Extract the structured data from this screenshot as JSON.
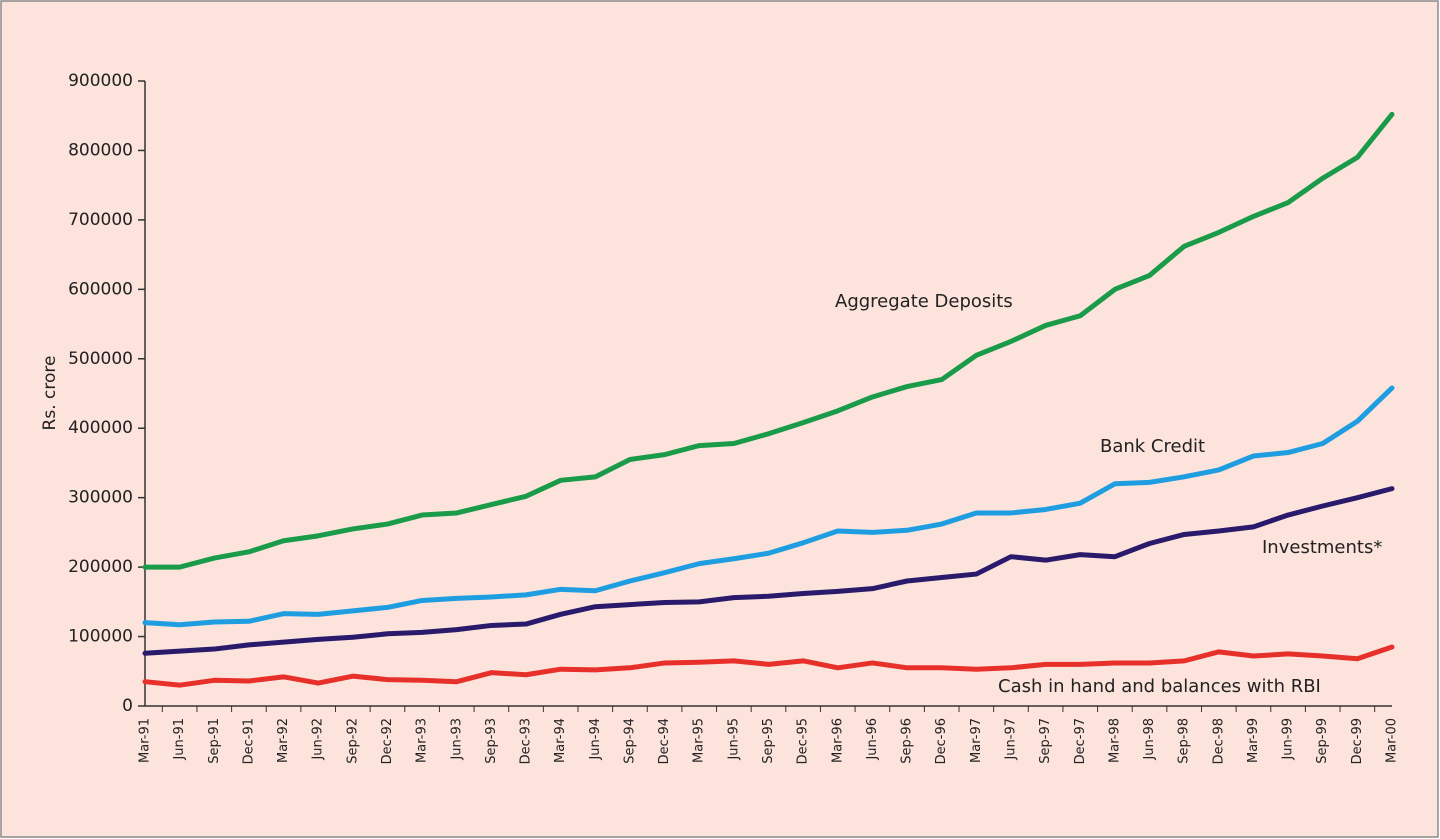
{
  "chart_data": {
    "type": "line",
    "y_label": "Rs. crore",
    "categories": [
      "Mar-91",
      "Jun-91",
      "Sep-91",
      "Dec-91",
      "Mar-92",
      "Jun-92",
      "Sep-92",
      "Dec-92",
      "Mar-93",
      "Jun-93",
      "Sep-93",
      "Dec-93",
      "Mar-94",
      "Jun-94",
      "Sep-94",
      "Dec-94",
      "Mar-95",
      "Jun-95",
      "Sep-95",
      "Dec-95",
      "Mar-96",
      "Jun-96",
      "Sep-96",
      "Dec-96",
      "Mar-97",
      "Jun-97",
      "Sep-97",
      "Dec-97",
      "Mar-98",
      "Jun-98",
      "Sep-98",
      "Dec-98",
      "Mar-99",
      "Jun-99",
      "Sep-99",
      "Dec-99",
      "Mar-00"
    ],
    "series": [
      {
        "name": "Aggregate Deposits",
        "color": "#1a9b4a",
        "values": [
          200000,
          200000,
          213000,
          222000,
          238000,
          245000,
          255000,
          262000,
          275000,
          278000,
          290000,
          302000,
          325000,
          330000,
          355000,
          362000,
          375000,
          378000,
          392000,
          408000,
          425000,
          445000,
          460000,
          470000,
          505000,
          525000,
          548000,
          562000,
          600000,
          620000,
          662000,
          682000,
          705000,
          725000,
          760000,
          790000,
          852000
        ]
      },
      {
        "name": "Bank Credit",
        "color": "#1e9ee0",
        "values": [
          120000,
          117000,
          121000,
          122000,
          133000,
          132000,
          137000,
          142000,
          152000,
          155000,
          157000,
          160000,
          168000,
          166000,
          180000,
          192000,
          205000,
          212000,
          220000,
          235000,
          252000,
          250000,
          253000,
          262000,
          278000,
          278000,
          283000,
          292000,
          320000,
          322000,
          330000,
          340000,
          360000,
          365000,
          378000,
          410000,
          458000
        ]
      },
      {
        "name": "Investments*",
        "color": "#2a1a6b",
        "values": [
          76000,
          79000,
          82000,
          88000,
          92000,
          96000,
          99000,
          104000,
          106000,
          110000,
          116000,
          118000,
          132000,
          143000,
          146000,
          149000,
          150000,
          156000,
          158000,
          162000,
          165000,
          169000,
          180000,
          185000,
          190000,
          215000,
          210000,
          218000,
          215000,
          234000,
          247000,
          252000,
          258000,
          275000,
          288000,
          300000,
          313000
        ]
      },
      {
        "name": "Cash in hand and balances with RBI",
        "color": "#e8302a",
        "values": [
          35000,
          30000,
          37000,
          36000,
          42000,
          33000,
          43000,
          38000,
          37000,
          35000,
          48000,
          45000,
          53000,
          52000,
          55000,
          62000,
          63000,
          65000,
          60000,
          65000,
          55000,
          62000,
          55000,
          55000,
          53000,
          55000,
          60000,
          60000,
          62000,
          62000,
          65000,
          78000,
          72000,
          75000,
          72000,
          68000,
          85000
        ]
      }
    ],
    "ylim": [
      0,
      900000
    ],
    "yticks": [
      0,
      100000,
      200000,
      300000,
      400000,
      500000,
      600000,
      700000,
      800000,
      900000
    ]
  }
}
